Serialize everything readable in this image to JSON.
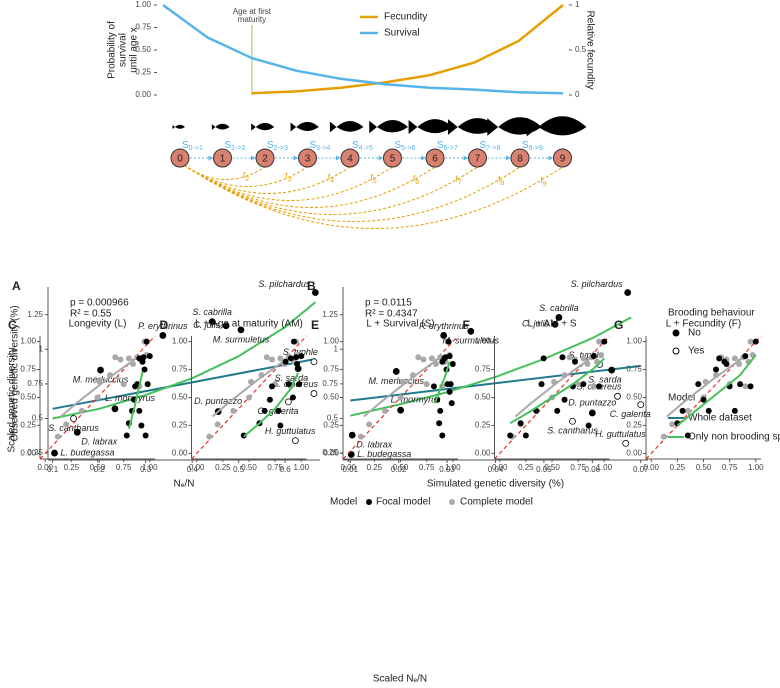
{
  "chart_data": [
    {
      "type": "line",
      "y_label_lines": [
        "Probability of",
        "survival",
        "until age x"
      ],
      "y2_label": "Relative fecundity",
      "annotation_lines": [
        "Age at first",
        "maturity"
      ],
      "x": [
        0,
        1,
        2,
        3,
        4,
        5,
        6,
        7,
        8,
        9
      ],
      "xlim": [
        0,
        9
      ],
      "ylim": [
        0,
        1
      ],
      "yticks": [
        {
          "value": 0,
          "label": "0.00"
        },
        {
          "value": 0.25,
          "label": "0.25"
        },
        {
          "value": 0.5,
          "label": "0.50"
        },
        {
          "value": 0.75,
          "label": "0.75"
        },
        {
          "value": 1,
          "label": "1.00"
        }
      ],
      "y2lim": [
        0,
        1
      ],
      "y2ticks": [
        0,
        0.5,
        1
      ],
      "series": [
        {
          "name": "Fecundity",
          "color": "#E69F00",
          "axis": "y2",
          "values": [
            null,
            null,
            0.02,
            0.04,
            0.08,
            0.14,
            0.22,
            0.36,
            0.6,
            1.0
          ]
        },
        {
          "name": "Survival",
          "color": "#56B4E9",
          "values": [
            1.0,
            0.64,
            0.41,
            0.27,
            0.18,
            0.12,
            0.08,
            0.06,
            0.03,
            0.02
          ]
        }
      ]
    },
    {
      "type": "scatter",
      "label": "A",
      "x_label": "Nₑ/N",
      "y_label": "Observed genetic diversity (%)",
      "annotations": [
        "p = 0.000966",
        "R² = 0.55"
      ],
      "xlim": [
        0.09,
        0.675
      ],
      "xticks": [
        0.1,
        0.2,
        0.3,
        0.4,
        0.5,
        0.6
      ],
      "ylim": [
        0.2,
        1.45
      ],
      "yticks": [
        0.25,
        0.5,
        0.75,
        1,
        1.25
      ],
      "points": {
        "names": [
          "S. pilchardus",
          "S. cabrilla",
          "C. julis",
          "M. surmuletus",
          "P. erythrinus",
          "M. merluccius",
          "L. mormyrus",
          "S. typhle",
          "S. sarda",
          "S. cinereus",
          "D. puntazzo",
          "C. galerita",
          "S. cantharus",
          "D. labrax",
          "H. guttulatus",
          "L. budegassa"
        ],
        "x": [
          0.665,
          0.443,
          0.473,
          0.505,
          0.337,
          0.203,
          0.234,
          0.662,
          0.628,
          0.662,
          0.456,
          0.607,
          0.145,
          0.153,
          0.622,
          0.104
        ],
        "y": [
          1.41,
          1.2,
          1.17,
          1.14,
          1.1,
          0.85,
          0.57,
          0.91,
          0.86,
          0.68,
          0.55,
          0.62,
          0.5,
          0.4,
          0.34,
          0.25
        ],
        "brooding": [
          "No",
          "No",
          "No",
          "No",
          "No",
          "No",
          "No",
          "Yes",
          "No",
          "Yes",
          "No",
          "Yes",
          "Yes",
          "No",
          "Yes",
          "No"
        ]
      },
      "fits": [
        {
          "color": "#1f7a8c",
          "x": [
            0.1,
            0.665
          ],
          "y": [
            0.57,
            0.93
          ]
        },
        {
          "color": "#45c05a",
          "x": [
            0.1,
            0.2,
            0.3,
            0.4,
            0.5,
            0.6,
            0.665
          ],
          "y": [
            0.5,
            0.57,
            0.67,
            0.79,
            0.95,
            1.16,
            1.34
          ]
        }
      ]
    },
    {
      "type": "scatter",
      "label": "B",
      "x_label": "Simulated genetic diversity (%)",
      "annotations": [
        "p = 0.0115",
        "R² = 0.4347"
      ],
      "xlim": [
        0.0085,
        0.0715
      ],
      "xticks": [
        0.01,
        0.02,
        0.03,
        0.04,
        0.05,
        0.06,
        0.07
      ],
      "ylim": [
        0.2,
        1.45
      ],
      "yticks": [
        0.25,
        0.5,
        0.75,
        1,
        1.25
      ],
      "points": {
        "names": [
          "S. pilchardus",
          "S. cabrilla",
          "C. julis",
          "M. surmuletus",
          "P. erythrinus",
          "M. merluccius",
          "L. mormyrus",
          "S. typhle",
          "S. sarda",
          "S. cinereus",
          "D. puntazzo",
          "C. galerita",
          "S. cantharus",
          "D. labrax",
          "H. guttulatus",
          "L. budegassa"
        ],
        "x": [
          0.0673,
          0.0531,
          0.0523,
          0.0349,
          0.0293,
          0.0195,
          0.0204,
          0.0615,
          0.064,
          0.0652,
          0.06,
          0.07,
          0.0559,
          0.0104,
          0.0669,
          0.0102
        ],
        "y": [
          1.41,
          1.23,
          1.18,
          1.13,
          1.1,
          0.84,
          0.56,
          0.89,
          0.85,
          0.66,
          0.54,
          0.6,
          0.48,
          0.38,
          0.32,
          0.24
        ],
        "brooding": [
          "No",
          "No",
          "No",
          "No",
          "No",
          "No",
          "No",
          "Yes",
          "No",
          "Yes",
          "No",
          "Yes",
          "Yes",
          "No",
          "Yes",
          "No"
        ]
      },
      "fits": [
        {
          "name": "Whole dataset",
          "color": "#1f7a8c",
          "x": [
            0.01,
            0.07
          ],
          "y": [
            0.63,
            0.88
          ]
        },
        {
          "name": "Only non brooding species",
          "color": "#45c05a",
          "x": [
            0.01,
            0.02,
            0.03,
            0.04,
            0.05,
            0.06,
            0.068
          ],
          "y": [
            0.52,
            0.6,
            0.69,
            0.8,
            0.93,
            1.08,
            1.23
          ]
        }
      ],
      "legend": {
        "brooding_title": "Brooding behaviour",
        "brooding_levels": [
          "No",
          "Yes"
        ],
        "model_title": "Model"
      }
    },
    {
      "type": "small-multiples",
      "x_label": "Scaled Nₑ/N",
      "y_label": "Scaled genetic diversity",
      "legend_title": "Model",
      "xlim": [
        -0.05,
        1.05
      ],
      "ylim": [
        -0.05,
        1.05
      ],
      "xticks": [
        {
          "value": 0,
          "label": "0.00"
        },
        {
          "value": 0.25,
          "label": "0.25"
        },
        {
          "value": 0.5,
          "label": "0.50"
        },
        {
          "value": 0.75,
          "label": "0.75"
        },
        {
          "value": 1,
          "label": "1.00"
        }
      ],
      "yticks": [
        {
          "value": 0,
          "label": "0.00"
        },
        {
          "value": 0.25,
          "label": "0.25"
        },
        {
          "value": 0.5,
          "label": "0.50"
        },
        {
          "value": 0.75,
          "label": "0.75"
        },
        {
          "value": 1,
          "label": "1.00"
        }
      ],
      "focal_name": "Focal model",
      "focal_color": "#000000",
      "diagonal_color": "#e8302a",
      "complete": {
        "name": "Complete model",
        "color": "#a9a9a9",
        "x": [
          0.12,
          0.2,
          0.35,
          0.5,
          0.52,
          0.62,
          0.67,
          0.72,
          0.75,
          0.8,
          0.84,
          0.88,
          0.9,
          0.93,
          0.95,
          0.97
        ],
        "y": [
          0.15,
          0.26,
          0.38,
          0.5,
          0.64,
          0.7,
          0.86,
          0.84,
          0.62,
          0.85,
          0.8,
          0.86,
          0.6,
          0.82,
          1.0,
          0.88
        ],
        "fit_x": [
          0.15,
          0.3,
          0.45,
          0.6,
          0.75,
          0.9
        ],
        "fit_y": [
          0.33,
          0.45,
          0.56,
          0.67,
          0.77,
          0.87
        ]
      },
      "fit_color": "#45c05a",
      "panels": [
        {
          "letter": "C",
          "title": "Longevity (L)",
          "x": [
            0.78,
            0.8,
            0.83,
            0.85,
            0.86,
            0.88,
            0.9,
            0.9,
            0.92,
            0.93,
            0.94,
            0.95,
            0.97,
            0.98,
            1.0,
            0.96
          ],
          "y": [
            0.16,
            0.27,
            0.38,
            0.48,
            0.6,
            0.62,
            0.38,
            0.85,
            0.25,
            0.82,
            0.86,
            0.75,
            1.0,
            0.62,
            0.87,
            0.16
          ],
          "fit_x": [
            0.8,
            0.85,
            0.9,
            0.93
          ],
          "fit_y": [
            0.22,
            0.4,
            0.6,
            0.73
          ]
        },
        {
          "letter": "D",
          "title": "L + Age at maturity (AM)",
          "x": [
            0.45,
            0.6,
            0.65,
            0.7,
            0.72,
            0.78,
            0.8,
            0.85,
            0.88,
            0.9,
            0.92,
            0.93,
            0.95,
            0.96,
            0.98,
            1.0
          ],
          "y": [
            0.16,
            0.27,
            0.38,
            0.48,
            0.6,
            0.38,
            0.25,
            0.82,
            0.62,
            0.85,
            0.5,
            1.0,
            0.86,
            0.8,
            0.62,
            0.87
          ],
          "fit_x": [
            0.45,
            0.6,
            0.75,
            0.9,
            0.97
          ],
          "fit_y": [
            0.15,
            0.27,
            0.4,
            0.58,
            0.72
          ]
        },
        {
          "letter": "E",
          "title": "L + Survival (S)",
          "x": [
            0.82,
            0.85,
            0.87,
            0.88,
            0.9,
            0.9,
            0.92,
            0.93,
            0.94,
            0.95,
            0.96,
            0.97,
            0.97,
            0.98,
            0.99,
            1.0
          ],
          "y": [
            0.6,
            0.48,
            0.27,
            0.38,
            0.16,
            0.82,
            0.85,
            0.86,
            0.75,
            0.62,
            1.0,
            0.87,
            0.55,
            0.62,
            0.45,
            0.8
          ],
          "fit_x": [
            0.83,
            0.88,
            0.93,
            0.97
          ],
          "fit_y": [
            0.45,
            0.58,
            0.7,
            0.82
          ]
        },
        {
          "letter": "F",
          "title": "L + AM + S",
          "x": [
            0.1,
            0.2,
            0.25,
            0.35,
            0.4,
            0.42,
            0.55,
            0.6,
            0.62,
            0.7,
            0.72,
            0.8,
            0.85,
            0.9,
            0.95,
            1.0
          ],
          "y": [
            0.16,
            0.27,
            0.16,
            0.38,
            0.62,
            0.85,
            0.38,
            0.86,
            0.48,
            0.6,
            0.82,
            0.62,
            0.25,
            0.87,
            0.6,
            1.0
          ],
          "fit_x": [
            0.1,
            0.3,
            0.5,
            0.7,
            0.9,
            1.0
          ],
          "fit_y": [
            0.27,
            0.38,
            0.5,
            0.62,
            0.76,
            0.85
          ]
        },
        {
          "letter": "G",
          "title": "L + Fecundity (F)",
          "x": [
            0.25,
            0.3,
            0.35,
            0.45,
            0.5,
            0.55,
            0.62,
            0.65,
            0.7,
            0.72,
            0.75,
            0.8,
            0.85,
            0.9,
            0.95,
            1.0
          ],
          "y": [
            0.27,
            0.38,
            0.16,
            0.62,
            0.48,
            0.38,
            0.75,
            0.85,
            0.82,
            0.8,
            0.6,
            0.38,
            0.62,
            0.87,
            0.6,
            1.0
          ],
          "fit_x": [
            0.25,
            0.45,
            0.65,
            0.85,
            1.0
          ],
          "fit_y": [
            0.25,
            0.4,
            0.55,
            0.7,
            0.88
          ]
        }
      ]
    }
  ],
  "life_cycle": {
    "nodes": [
      "0",
      "1",
      "2",
      "3",
      "4",
      "5",
      "6",
      "7",
      "8",
      "9"
    ],
    "survival_labels": [
      {
        "base": "S",
        "sub": "0->1"
      },
      {
        "base": "S",
        "sub": "1->2"
      },
      {
        "base": "S",
        "sub": "2->3"
      },
      {
        "base": "S",
        "sub": "3->4"
      },
      {
        "base": "S",
        "sub": "4->5"
      },
      {
        "base": "S",
        "sub": "5->6"
      },
      {
        "base": "S",
        "sub": "6->7"
      },
      {
        "base": "S",
        "sub": "7->8"
      },
      {
        "base": "S",
        "sub": "8->9"
      }
    ],
    "fecundity_labels": [
      {
        "base": "f",
        "sub": "2"
      },
      {
        "base": "f",
        "sub": "3"
      },
      {
        "base": "f",
        "sub": "4"
      },
      {
        "base": "f",
        "sub": "5"
      },
      {
        "base": "f",
        "sub": "6"
      },
      {
        "base": "f",
        "sub": "7"
      },
      {
        "base": "f",
        "sub": "8"
      },
      {
        "base": "f",
        "sub": "9"
      }
    ]
  }
}
